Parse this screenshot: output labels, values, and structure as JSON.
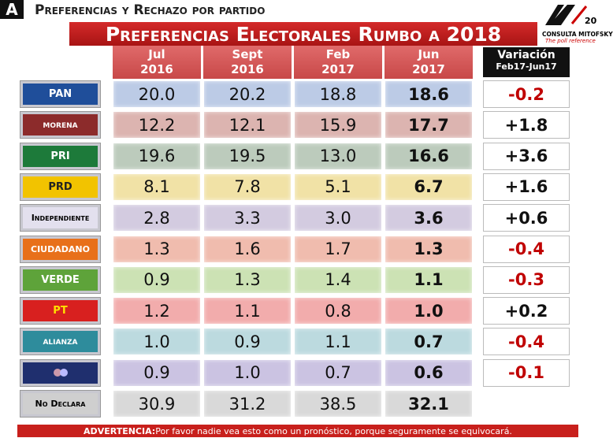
{
  "header": {
    "section": "A",
    "subtitle": "Preferencias y Rechazo por partido",
    "title": "Preferencias Electorales Rumbo a 2018",
    "logo": {
      "number": "20",
      "name": "CONSULTA MITOFSKY",
      "tagline": "The poll reference"
    }
  },
  "table": {
    "columns": [
      {
        "month": "Jul",
        "year": "2016"
      },
      {
        "month": "Sept",
        "year": "2016"
      },
      {
        "month": "Feb",
        "year": "2017"
      },
      {
        "month": "Jun",
        "year": "2017"
      }
    ],
    "variation_header": {
      "title": "Variación",
      "period": "Feb17-Jun17"
    },
    "rows": [
      {
        "party": "PAN",
        "logo_color": "#1f4e9a",
        "text_color": "#ffffff",
        "color": "#bccbe6",
        "values": [
          "20.0",
          "20.2",
          "18.8",
          "18.6"
        ],
        "variation": "-0.2"
      },
      {
        "party": "morena",
        "logo_color": "#8c2b2b",
        "text_color": "#ffffff",
        "color": "#dcb4b0",
        "values": [
          "12.2",
          "12.1",
          "15.9",
          "17.7"
        ],
        "variation": "+1.8"
      },
      {
        "party": "PRI",
        "logo_color": "#1d7a3a",
        "text_color": "#ffffff",
        "color": "#bccbbc",
        "values": [
          "19.6",
          "19.5",
          "13.0",
          "16.6"
        ],
        "variation": "+3.6"
      },
      {
        "party": "PRD",
        "logo_color": "#f2c300",
        "text_color": "#222222",
        "color": "#f1e2a6",
        "values": [
          "8.1",
          "7.8",
          "5.1",
          "6.7"
        ],
        "variation": "+1.6"
      },
      {
        "party": "Independiente",
        "logo_color": "#e3e0ee",
        "text_color": "#000000",
        "color": "#d3cbe0",
        "values": [
          "2.8",
          "3.3",
          "3.0",
          "3.6"
        ],
        "variation": "+0.6"
      },
      {
        "party": "CIUDADANO",
        "logo_color": "#e8701a",
        "text_color": "#ffffff",
        "color": "#f0bcae",
        "values": [
          "1.3",
          "1.6",
          "1.7",
          "1.3"
        ],
        "variation": "-0.4"
      },
      {
        "party": "VERDE",
        "logo_color": "#5ea33a",
        "text_color": "#ffffff",
        "color": "#cce2b4",
        "values": [
          "0.9",
          "1.3",
          "1.4",
          "1.1"
        ],
        "variation": "-0.3"
      },
      {
        "party": "PT",
        "logo_color": "#d8201f",
        "text_color": "#ffe000",
        "color": "#f2acac",
        "values": [
          "1.2",
          "1.1",
          "0.8",
          "1.0"
        ],
        "variation": "+0.2"
      },
      {
        "party": "alianza",
        "logo_color": "#2e8c9c",
        "text_color": "#ffffff",
        "color": "#bcdadf",
        "values": [
          "1.0",
          "0.9",
          "1.1",
          "0.7"
        ],
        "variation": "-0.4"
      },
      {
        "logo_color": "#1f2f6e",
        "text_color": "#ffffff",
        "color": "#cbc3e2",
        "values": [
          "0.9",
          "1.0",
          "0.7",
          "0.6"
        ],
        "variation": "-0.1"
      },
      {
        "party": "No Declara",
        "logo_color": "#cfcfcf",
        "text_color": "#000000",
        "color": "#d9d9d9",
        "values": [
          "30.9",
          "31.2",
          "38.5",
          "32.1"
        ]
      }
    ]
  },
  "footer": {
    "label": "ADVERTENCIA:",
    "text": "Por favor nadie vea esto como un pronóstico, porque seguramente se equivocará."
  }
}
